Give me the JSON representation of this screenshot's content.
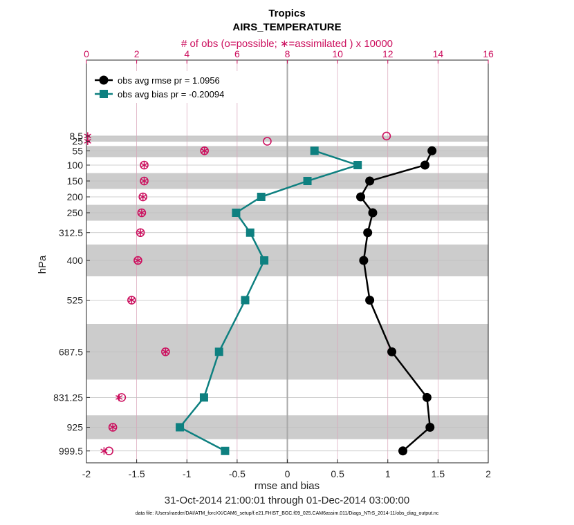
{
  "chart_data": {
    "type": "line",
    "title": "Tropics",
    "subtitle": "AIRS_TEMPERATURE",
    "xlabel": "rmse and bias",
    "ylabel": "hPa",
    "top_xlabel": "# of obs (o=possible; ∗=assimilated ) x 10000",
    "date_range": "31-Oct-2014 21:00:01 through 01-Dec-2014 03:00:00",
    "data_file": "data file: /Users/raeder/DAI/ATM_forcXX/CAM6_setup/f.e21.FHIST_BGC.f09_025.CAM6assim.011/Diags_NTrS_2014-11/obs_diag_output.nc",
    "xlim": [
      -2,
      2
    ],
    "top_xlim": [
      0,
      16
    ],
    "xticks": [
      "-2",
      "-1.5",
      "-1",
      "-0.5",
      "0",
      "0.5",
      "1",
      "1.5",
      "2"
    ],
    "xtick_values": [
      -2,
      -1.5,
      -1,
      -0.5,
      0,
      0.5,
      1,
      1.5,
      2
    ],
    "top_xticks": [
      "0",
      "2",
      "4",
      "6",
      "8",
      "10",
      "12",
      "14",
      "16"
    ],
    "top_xtick_values": [
      0,
      2,
      4,
      6,
      8,
      10,
      12,
      14,
      16
    ],
    "levels": [
      "8.5",
      "25",
      "55",
      "100",
      "150",
      "200",
      "250",
      "312.5",
      "400",
      "525",
      "687.5",
      "831.25",
      "925",
      "999.5"
    ],
    "level_values": [
      8.5,
      25,
      55,
      100,
      150,
      200,
      250,
      312.5,
      400,
      525,
      687.5,
      831.25,
      925,
      999.5
    ],
    "grid": true,
    "legend_position": "top-left",
    "series": [
      {
        "name": "obs avg rmse pr = 1.0956",
        "color": "#000000",
        "marker": "circle",
        "points": [
          {
            "level": 55,
            "value": 1.44
          },
          {
            "level": 100,
            "value": 1.37
          },
          {
            "level": 150,
            "value": 0.82
          },
          {
            "level": 200,
            "value": 0.73
          },
          {
            "level": 250,
            "value": 0.85
          },
          {
            "level": 312.5,
            "value": 0.8
          },
          {
            "level": 400,
            "value": 0.76
          },
          {
            "level": 525,
            "value": 0.82
          },
          {
            "level": 687.5,
            "value": 1.04
          },
          {
            "level": 831.25,
            "value": 1.39
          },
          {
            "level": 925,
            "value": 1.42
          },
          {
            "level": 999.5,
            "value": 1.15
          }
        ]
      },
      {
        "name": "obs avg bias pr = -0.20094",
        "color": "#0e8080",
        "marker": "square",
        "points": [
          {
            "level": 55,
            "value": 0.27
          },
          {
            "level": 100,
            "value": 0.7
          },
          {
            "level": 150,
            "value": 0.2
          },
          {
            "level": 200,
            "value": -0.26
          },
          {
            "level": 250,
            "value": -0.51
          },
          {
            "level": 312.5,
            "value": -0.37
          },
          {
            "level": 400,
            "value": -0.23
          },
          {
            "level": 525,
            "value": -0.42
          },
          {
            "level": 687.5,
            "value": -0.68
          },
          {
            "level": 831.25,
            "value": -0.83
          },
          {
            "level": 925,
            "value": -1.07
          },
          {
            "level": 999.5,
            "value": -0.62
          }
        ]
      }
    ],
    "obs_counts": {
      "color": "#cc0f5e",
      "possible": [
        {
          "level": 8.5,
          "value": 11.95
        },
        {
          "level": 25,
          "value": 7.2
        },
        {
          "level": 55,
          "value": 4.7
        },
        {
          "level": 100,
          "value": 2.3
        },
        {
          "level": 150,
          "value": 2.3
        },
        {
          "level": 200,
          "value": 2.25
        },
        {
          "level": 250,
          "value": 2.2
        },
        {
          "level": 312.5,
          "value": 2.15
        },
        {
          "level": 400,
          "value": 2.05
        },
        {
          "level": 525,
          "value": 1.8
        },
        {
          "level": 687.5,
          "value": 3.15
        },
        {
          "level": 831.25,
          "value": 1.4
        },
        {
          "level": 925,
          "value": 1.05
        },
        {
          "level": 999.5,
          "value": 0.9
        }
      ],
      "assimilated": [
        {
          "level": 8.5,
          "value": 0.05
        },
        {
          "level": 25,
          "value": 0.05
        },
        {
          "level": 55,
          "value": 4.7
        },
        {
          "level": 100,
          "value": 2.3
        },
        {
          "level": 150,
          "value": 2.3
        },
        {
          "level": 200,
          "value": 2.25
        },
        {
          "level": 250,
          "value": 2.2
        },
        {
          "level": 312.5,
          "value": 2.15
        },
        {
          "level": 400,
          "value": 2.05
        },
        {
          "level": 525,
          "value": 1.8
        },
        {
          "level": 687.5,
          "value": 3.15
        },
        {
          "level": 831.25,
          "value": 1.3
        },
        {
          "level": 925,
          "value": 1.05
        },
        {
          "level": 999.5,
          "value": 0.7
        }
      ]
    },
    "shaded_bands": [
      {
        "from_level": 8.5,
        "to_level": 25
      },
      {
        "from_level": 40,
        "to_level": 75
      },
      {
        "from_level": 125,
        "to_level": 175
      },
      {
        "from_level": 225,
        "to_level": 275
      },
      {
        "from_level": 350,
        "to_level": 450
      },
      {
        "from_level": 600,
        "to_level": 775
      },
      {
        "from_level": 887.5,
        "to_level": 962.5
      }
    ]
  }
}
